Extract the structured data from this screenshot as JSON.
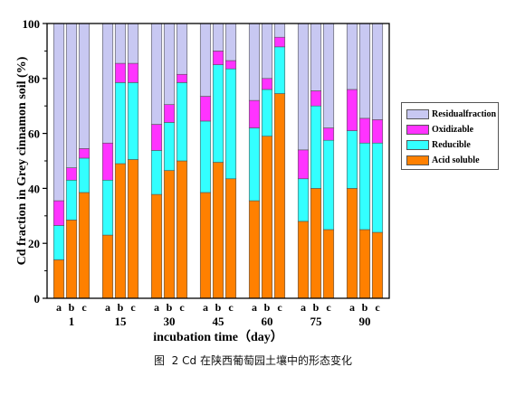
{
  "chart_data": {
    "type": "bar",
    "stacked": true,
    "ylabel": "Cd fraction in Grey cinnamon soil (%)",
    "xlabel": "incubation time（day）",
    "ylim": [
      0,
      100
    ],
    "yticks": [
      "0",
      "20",
      "40",
      "60",
      "80",
      "100"
    ],
    "groups": [
      "1",
      "15",
      "30",
      "45",
      "60",
      "75",
      "90"
    ],
    "subcategories": [
      "a",
      "b",
      "c"
    ],
    "colors": {
      "Residualfraction": "#c8c8f2",
      "Oxidizable": "#ff33ff",
      "Reducible": "#33ffff",
      "Acid soluble": "#ff8000"
    },
    "legend_position": "right",
    "series": [
      {
        "name": "Acid soluble",
        "values": [
          14,
          28.5,
          38.5,
          23,
          49,
          50.5,
          37.8,
          46.5,
          50,
          38.5,
          49.5,
          43.5,
          35.5,
          59,
          74.5,
          28,
          40,
          25,
          40,
          25,
          24
        ]
      },
      {
        "name": "Reducible",
        "values": [
          12.5,
          14.5,
          12.5,
          20,
          29.5,
          28,
          16,
          17.5,
          28.5,
          26,
          35.5,
          40,
          26.5,
          17,
          17,
          15.5,
          30,
          32.5,
          21,
          31.5,
          32.5
        ]
      },
      {
        "name": "Oxidizable",
        "values": [
          9,
          4.5,
          3.5,
          13.5,
          7,
          7,
          9.5,
          6.5,
          3,
          9,
          5,
          3,
          10,
          4,
          3.5,
          10.5,
          5.5,
          4.5,
          15,
          9,
          8.5
        ]
      },
      {
        "name": "Residualfraction",
        "values": [
          64.5,
          52.5,
          45.5,
          43.5,
          14.5,
          14.5,
          36.7,
          29.5,
          18.5,
          26.5,
          10,
          13.5,
          28,
          20,
          5,
          46,
          24.5,
          38,
          24,
          34.5,
          35
        ]
      }
    ]
  },
  "caption": {
    "figure_label": "图  2",
    "text": "Cd 在陕西葡萄园土壤中的形态变化"
  }
}
